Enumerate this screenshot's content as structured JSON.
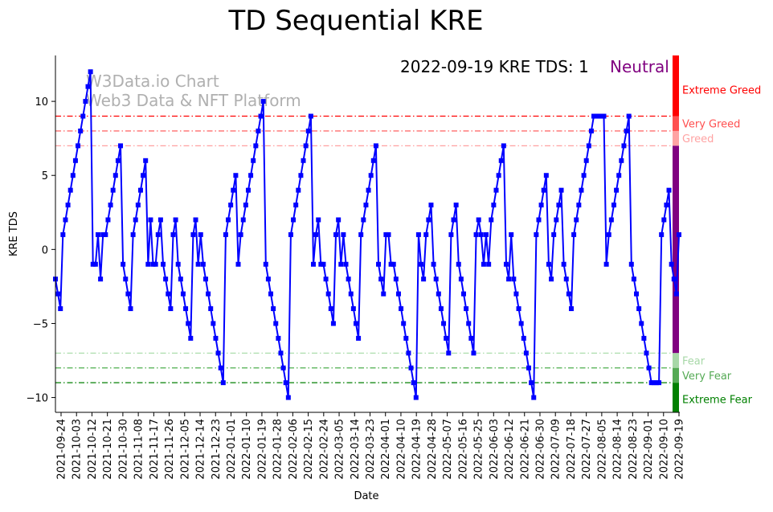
{
  "chart_data": {
    "type": "line",
    "title": "TD Sequential KRE",
    "xlabel": "Date",
    "ylabel": "KRE TDS",
    "ylim": [
      -11,
      13.1
    ],
    "yticks": [
      -10,
      -5,
      0,
      5,
      10
    ],
    "grid": false,
    "series_name": "KRE TDS",
    "series_color": "#0000ff",
    "start_date": "2021-09-21",
    "end_date": "2022-09-19",
    "xtick_labels": [
      "2021-09-24",
      "2021-10-03",
      "2021-10-12",
      "2021-10-21",
      "2021-10-30",
      "2021-11-08",
      "2021-11-17",
      "2021-11-26",
      "2021-12-05",
      "2021-12-14",
      "2021-12-23",
      "2022-01-01",
      "2022-01-10",
      "2022-01-19",
      "2022-01-28",
      "2022-02-06",
      "2022-02-15",
      "2022-02-24",
      "2022-03-05",
      "2022-03-14",
      "2022-03-23",
      "2022-04-01",
      "2022-04-10",
      "2022-04-19",
      "2022-04-28",
      "2022-05-07",
      "2022-05-16",
      "2022-05-25",
      "2022-06-03",
      "2022-06-12",
      "2022-06-21",
      "2022-06-30",
      "2022-07-09",
      "2022-07-18",
      "2022-07-27",
      "2022-08-05",
      "2022-08-14",
      "2022-08-23",
      "2022-09-01",
      "2022-09-10",
      "2022-09-19"
    ],
    "values": [
      -2,
      -3,
      -4,
      1,
      2,
      3,
      4,
      5,
      6,
      7,
      8,
      9,
      10,
      11,
      12,
      -1,
      -1,
      1,
      -2,
      1,
      1,
      2,
      3,
      4,
      5,
      6,
      7,
      -1,
      -2,
      -3,
      -4,
      1,
      2,
      3,
      4,
      5,
      6,
      -1,
      2,
      -1,
      -1,
      1,
      2,
      -1,
      -2,
      -3,
      -4,
      1,
      2,
      -1,
      -2,
      -3,
      -4,
      -5,
      -6,
      1,
      2,
      -1,
      1,
      -1,
      -2,
      -3,
      -4,
      -5,
      -6,
      -7,
      -8,
      -9,
      1,
      2,
      3,
      4,
      5,
      -1,
      1,
      2,
      3,
      4,
      5,
      6,
      7,
      8,
      9,
      10,
      -1,
      -2,
      -3,
      -4,
      -5,
      -6,
      -7,
      -8,
      -9,
      -10,
      1,
      2,
      3,
      4,
      5,
      6,
      7,
      8,
      9,
      -1,
      1,
      2,
      -1,
      -1,
      -2,
      -3,
      -4,
      -5,
      1,
      2,
      -1,
      1,
      -1,
      -2,
      -3,
      -4,
      -5,
      -6,
      1,
      2,
      3,
      4,
      5,
      6,
      7,
      -1,
      -2,
      -3,
      1,
      1,
      -1,
      -1,
      -2,
      -3,
      -4,
      -5,
      -6,
      -7,
      -8,
      -9,
      -10,
      1,
      -1,
      -2,
      1,
      2,
      3,
      -1,
      -2,
      -3,
      -4,
      -5,
      -6,
      -7,
      1,
      2,
      3,
      -1,
      -2,
      -3,
      -4,
      -5,
      -6,
      -7,
      1,
      2,
      1,
      -1,
      1,
      -1,
      2,
      3,
      4,
      5,
      6,
      7,
      -1,
      -2,
      1,
      -2,
      -3,
      -4,
      -5,
      -6,
      -7,
      -8,
      -9,
      -10,
      1,
      2,
      3,
      4,
      5,
      -1,
      -2,
      1,
      2,
      3,
      4,
      -1,
      -2,
      -3,
      -4,
      1,
      2,
      3,
      4,
      5,
      6,
      7,
      8,
      9,
      9,
      9,
      9,
      9,
      -1,
      1,
      2,
      3,
      4,
      5,
      6,
      7,
      8,
      9,
      -1,
      -2,
      -3,
      -4,
      -5,
      -6,
      -7,
      -8,
      -9,
      -9,
      -9,
      -9,
      1,
      2,
      3,
      4,
      -1,
      -2,
      -3,
      1
    ],
    "threshold_lines": [
      {
        "value": 9,
        "color": "#ff0000"
      },
      {
        "value": 8,
        "color": "#ff4d4d"
      },
      {
        "value": 7,
        "color": "#ffa0a0"
      },
      {
        "value": -7,
        "color": "#a3d9a3"
      },
      {
        "value": -8,
        "color": "#4caf4c"
      },
      {
        "value": -9,
        "color": "#007f00"
      }
    ],
    "zones": [
      {
        "label": "Extreme Greed",
        "from": 9,
        "to": 13.1,
        "color": "#ff0000",
        "label_value": 10.8
      },
      {
        "label": "Very Greed",
        "from": 8,
        "to": 9,
        "color": "#ff5050",
        "label_value": 8.5
      },
      {
        "label": "Greed",
        "from": 7,
        "to": 8,
        "color": "#ffa3a3",
        "label_value": 7.5
      },
      {
        "label": "Neutral",
        "from": -7,
        "to": 7,
        "color": "#800080",
        "label_value": null
      },
      {
        "label": "Fear",
        "from": -8,
        "to": -7,
        "color": "#a8d8a8",
        "label_value": -7.5
      },
      {
        "label": "Very Fear",
        "from": -9,
        "to": -8,
        "color": "#55aa55",
        "label_value": -8.5
      },
      {
        "label": "Extreme Fear",
        "from": -11,
        "to": -9,
        "color": "#008000",
        "label_value": -10.1
      }
    ],
    "annotation": {
      "text": "2022-09-19 KRE TDS: 1",
      "status": "Neutral",
      "status_color": "#800080"
    },
    "watermark": [
      "W3Data.io Chart",
      "Web3 Data & NFT Platform"
    ]
  }
}
